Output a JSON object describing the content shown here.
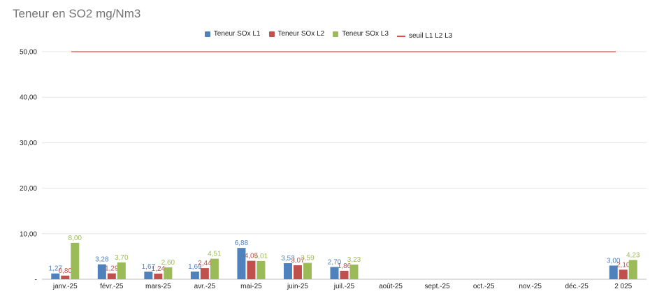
{
  "chart_data": {
    "type": "bar",
    "title": "Teneur en SO2 mg/Nm3",
    "xlabel": "",
    "ylabel": "",
    "ylim": [
      0,
      50
    ],
    "y_ticks": [
      "-",
      "10,00",
      "20,00",
      "30,00",
      "40,00",
      "50,00"
    ],
    "categories": [
      "janv.-25",
      "févr.-25",
      "mars-25",
      "avr.-25",
      "mai-25",
      "juin-25",
      "juil.-25",
      "août-25",
      "sept.-25",
      "oct.-25",
      "nov.-25",
      "déc.-25",
      "2 025"
    ],
    "series": [
      {
        "name": "Teneur SOx L1",
        "color": "#4f81bd",
        "values": [
          1.27,
          3.28,
          1.67,
          1.69,
          6.88,
          3.53,
          2.7,
          null,
          null,
          null,
          null,
          null,
          3.0
        ],
        "labels": [
          "1,27",
          "3,28",
          "1,67",
          "1,69",
          "6,88",
          "3,53",
          "2,70",
          "",
          "",
          "",
          "",
          "",
          "3,00"
        ]
      },
      {
        "name": "Teneur SOx L2",
        "color": "#c0504d",
        "values": [
          0.8,
          1.29,
          1.24,
          2.44,
          4.05,
          3.07,
          1.86,
          null,
          null,
          null,
          null,
          null,
          2.1
        ],
        "labels": [
          "0,80",
          "1,29",
          "1,24",
          "2,44",
          "4,05",
          "3,07",
          "1,86",
          "",
          "",
          "",
          "",
          "",
          "2,10"
        ]
      },
      {
        "name": "Teneur SOx L3",
        "color": "#9bbb59",
        "values": [
          8.0,
          3.7,
          2.6,
          4.51,
          4.01,
          3.59,
          3.23,
          null,
          null,
          null,
          null,
          null,
          4.23
        ],
        "labels": [
          "8,00",
          "3,70",
          "2,60",
          "4,51",
          "4,01",
          "3,59",
          "3,23",
          "",
          "",
          "",
          "",
          "",
          "4,23"
        ]
      }
    ],
    "threshold": {
      "name": "seuil L1 L2 L3",
      "value": 50,
      "color": "#e84a4a"
    },
    "legend_position": "top"
  }
}
